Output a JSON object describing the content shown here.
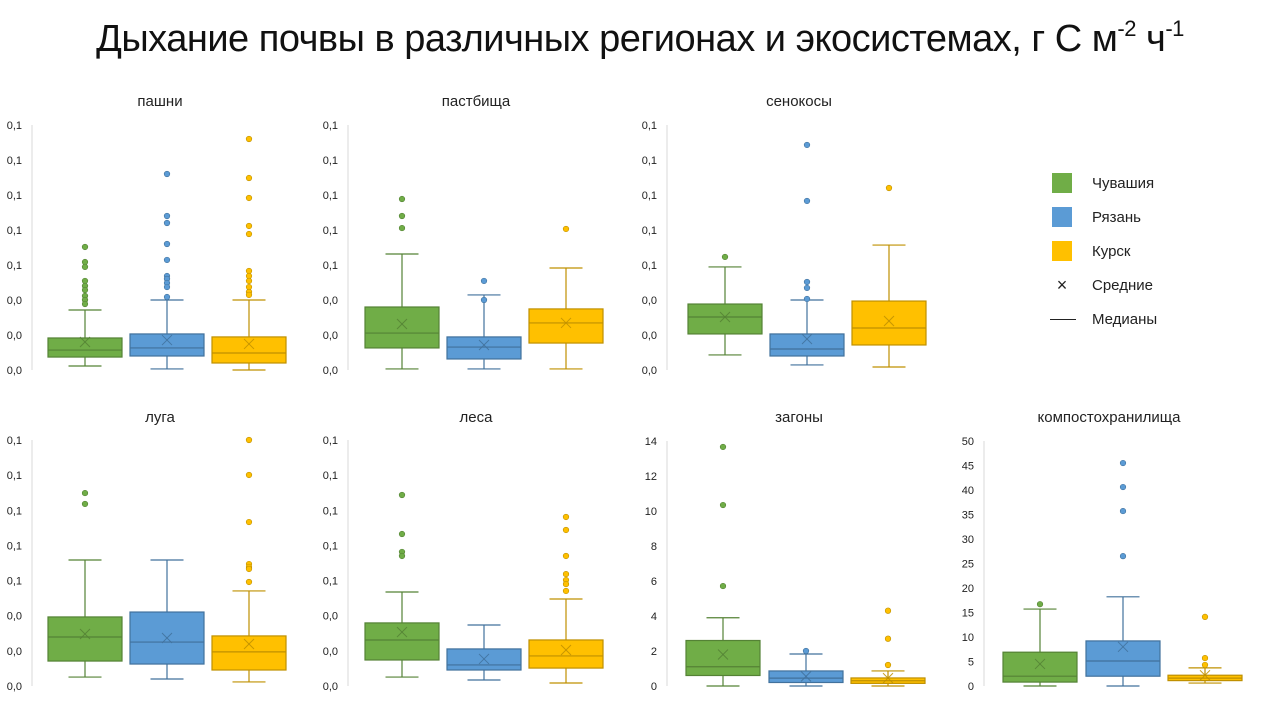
{
  "title": {
    "text": "Дыхание почвы в различных регионах и экосистемах, г С м",
    "sup1": "-2",
    "mid": " ч",
    "sup2": "-1"
  },
  "legend": {
    "items": [
      {
        "label": "Чувашия",
        "type": "swatch",
        "color": "#70ad47"
      },
      {
        "label": "Рязань",
        "type": "swatch",
        "color": "#5b9bd5"
      },
      {
        "label": "Курск",
        "type": "swatch",
        "color": "#ffc000"
      },
      {
        "label": "Средние",
        "type": "x-marker",
        "symbol": "×"
      },
      {
        "label": "Медианы",
        "type": "line"
      }
    ]
  },
  "colors": {
    "Чувашия": {
      "fill": "#70ad47",
      "line": "#548235"
    },
    "Рязань": {
      "fill": "#5b9bd5",
      "line": "#41719c"
    },
    "Курск": {
      "fill": "#ffc000",
      "line": "#bf9000"
    },
    "axis": "#d9d9d9",
    "text": "#222222"
  },
  "chart_data": [
    {
      "type": "boxplot",
      "title": "пашни",
      "ylim": [
        0,
        0.14
      ],
      "yticks": [
        0,
        0.02,
        0.04,
        0.06,
        0.08,
        0.1,
        0.12,
        0.14
      ],
      "ytick_labels": [
        "0,0",
        "0,0",
        "0,0",
        "0,1",
        "0,1",
        "0,1",
        "0,1",
        "0,1"
      ],
      "series": [
        {
          "name": "Чувашия",
          "whisker_low": 0.0023,
          "q1": 0.0074,
          "median": 0.0114,
          "mean": 0.016,
          "q3": 0.0183,
          "whisker_high": 0.0343,
          "outliers": [
            0.0703,
            0.0617,
            0.0589,
            0.0509,
            0.048,
            0.0457,
            0.0423,
            0.04,
            0.0377
          ]
        },
        {
          "name": "Рязань",
          "whisker_low": 0.0006,
          "q1": 0.008,
          "median": 0.0126,
          "mean": 0.0171,
          "q3": 0.0206,
          "whisker_high": 0.04,
          "outliers": [
            0.112,
            0.088,
            0.084,
            0.072,
            0.0629,
            0.0537,
            0.052,
            0.0497,
            0.0474,
            0.0417
          ]
        },
        {
          "name": "Курск",
          "whisker_low": 0.0,
          "q1": 0.004,
          "median": 0.0097,
          "mean": 0.0149,
          "q3": 0.0189,
          "whisker_high": 0.04,
          "outliers": [
            0.132,
            0.1097,
            0.0983,
            0.0823,
            0.0777,
            0.0566,
            0.0537,
            0.0509,
            0.0474,
            0.0446,
            0.0429
          ]
        }
      ]
    },
    {
      "type": "boxplot",
      "title": "пастбища",
      "ylim": [
        0,
        0.14
      ],
      "yticks": [
        0,
        0.02,
        0.04,
        0.06,
        0.08,
        0.1,
        0.12,
        0.14
      ],
      "ytick_labels": [
        "0,0",
        "0,0",
        "0,0",
        "0,1",
        "0,1",
        "0,1",
        "0,1",
        "0,1"
      ],
      "series": [
        {
          "name": "Чувашия",
          "whisker_low": 0.0006,
          "q1": 0.0126,
          "median": 0.0211,
          "mean": 0.0263,
          "q3": 0.036,
          "whisker_high": 0.0663,
          "outliers": [
            0.0977,
            0.088,
            0.0811
          ]
        },
        {
          "name": "Рязань",
          "whisker_low": 0.0006,
          "q1": 0.0063,
          "median": 0.0131,
          "mean": 0.0143,
          "q3": 0.0189,
          "whisker_high": 0.0429,
          "outliers": [
            0.0509,
            0.04
          ]
        },
        {
          "name": "Курск",
          "whisker_low": 0.0006,
          "q1": 0.0154,
          "median": 0.0269,
          "mean": 0.0269,
          "q3": 0.0349,
          "whisker_high": 0.0583,
          "outliers": [
            0.0806
          ]
        }
      ]
    },
    {
      "type": "boxplot",
      "title": "сенокосы",
      "ylim": [
        0,
        0.14
      ],
      "yticks": [
        0,
        0.02,
        0.04,
        0.06,
        0.08,
        0.1,
        0.12,
        0.14
      ],
      "ytick_labels": [
        "0,0",
        "0,0",
        "0,0",
        "0,1",
        "0,1",
        "0,1",
        "0,1",
        "0,1"
      ],
      "series": [
        {
          "name": "Чувашия",
          "whisker_low": 0.0086,
          "q1": 0.0206,
          "median": 0.0303,
          "mean": 0.0303,
          "q3": 0.0377,
          "whisker_high": 0.0589,
          "outliers": [
            0.0646
          ]
        },
        {
          "name": "Рязань",
          "whisker_low": 0.0029,
          "q1": 0.008,
          "median": 0.012,
          "mean": 0.0177,
          "q3": 0.0206,
          "whisker_high": 0.04,
          "outliers": [
            0.1286,
            0.0966,
            0.0503,
            0.0469,
            0.0406
          ]
        },
        {
          "name": "Курск",
          "whisker_low": 0.0017,
          "q1": 0.0143,
          "median": 0.024,
          "mean": 0.028,
          "q3": 0.0394,
          "whisker_high": 0.0714,
          "outliers": [
            0.104
          ]
        }
      ]
    },
    {
      "type": "boxplot",
      "title": "луга",
      "ylim": [
        0,
        0.14
      ],
      "yticks": [
        0,
        0.02,
        0.04,
        0.06,
        0.08,
        0.1,
        0.12,
        0.14
      ],
      "ytick_labels": [
        "0,0",
        "0,0",
        "0,0",
        "0,1",
        "0,1",
        "0,1",
        "0,1",
        "0,1"
      ],
      "series": [
        {
          "name": "Чувашия",
          "whisker_low": 0.0051,
          "q1": 0.0142,
          "median": 0.0279,
          "mean": 0.0296,
          "q3": 0.0393,
          "whisker_high": 0.0717,
          "outliers": [
            0.1098,
            0.1036
          ]
        },
        {
          "name": "Рязань",
          "whisker_low": 0.004,
          "q1": 0.0125,
          "median": 0.025,
          "mean": 0.0273,
          "q3": 0.0421,
          "whisker_high": 0.0717,
          "outliers": []
        },
        {
          "name": "Курск",
          "whisker_low": 0.0023,
          "q1": 0.0091,
          "median": 0.0194,
          "mean": 0.0239,
          "q3": 0.0285,
          "whisker_high": 0.0541,
          "outliers": [
            0.14,
            0.1201,
            0.0933,
            0.0694,
            0.0677,
            0.0666,
            0.0592
          ]
        }
      ]
    },
    {
      "type": "boxplot",
      "title": "леса",
      "ylim": [
        0,
        0.14
      ],
      "yticks": [
        0,
        0.02,
        0.04,
        0.06,
        0.08,
        0.1,
        0.12,
        0.14
      ],
      "ytick_labels": [
        "0,0",
        "0,0",
        "0,0",
        "0,1",
        "0,1",
        "0,1",
        "0,1",
        "0,1"
      ],
      "series": [
        {
          "name": "Чувашия",
          "whisker_low": 0.0051,
          "q1": 0.0148,
          "median": 0.0262,
          "mean": 0.0307,
          "q3": 0.0359,
          "whisker_high": 0.0535,
          "outliers": [
            0.1087,
            0.0865,
            0.0763,
            0.074
          ]
        },
        {
          "name": "Рязань",
          "whisker_low": 0.0034,
          "q1": 0.0091,
          "median": 0.012,
          "mean": 0.0154,
          "q3": 0.0211,
          "whisker_high": 0.0347,
          "outliers": []
        },
        {
          "name": "Курск",
          "whisker_low": 0.0017,
          "q1": 0.0102,
          "median": 0.0171,
          "mean": 0.0205,
          "q3": 0.0262,
          "whisker_high": 0.0495,
          "outliers": [
            0.0962,
            0.0888,
            0.074,
            0.0637,
            0.0603,
            0.058,
            0.0541
          ]
        }
      ]
    },
    {
      "type": "boxplot",
      "title": "загоны",
      "ylim": [
        0,
        14
      ],
      "yticks": [
        0,
        2,
        4,
        6,
        8,
        10,
        12,
        14
      ],
      "ytick_labels": [
        "0",
        "2",
        "4",
        "6",
        "8",
        "10",
        "12",
        "14"
      ],
      "series": [
        {
          "name": "Чувашия",
          "whisker_low": 0.0,
          "q1": 0.6,
          "median": 1.1,
          "mean": 1.8,
          "q3": 2.6,
          "whisker_high": 3.9,
          "outliers": [
            13.66,
            10.34,
            5.71
          ]
        },
        {
          "name": "Рязань",
          "whisker_low": 0.0,
          "q1": 0.2,
          "median": 0.45,
          "mean": 0.55,
          "q3": 0.86,
          "whisker_high": 1.83,
          "outliers": [
            2.0
          ]
        },
        {
          "name": "Курск",
          "whisker_low": 0.0,
          "q1": 0.15,
          "median": 0.3,
          "mean": 0.45,
          "q3": 0.46,
          "whisker_high": 0.86,
          "outliers": [
            4.3,
            2.7,
            1.2
          ]
        }
      ]
    },
    {
      "type": "boxplot",
      "title": "компостохранилища",
      "ylim": [
        0,
        50
      ],
      "yticks": [
        0,
        5,
        10,
        15,
        20,
        25,
        30,
        35,
        40,
        45,
        50
      ],
      "ytick_labels": [
        "0",
        "5",
        "10",
        "15",
        "20",
        "25",
        "30",
        "35",
        "40",
        "45",
        "50"
      ],
      "series": [
        {
          "name": "Чувашия",
          "whisker_low": 0.0,
          "q1": 0.8,
          "median": 2.0,
          "mean": 4.5,
          "q3": 6.9,
          "whisker_high": 15.7,
          "outliers": [
            16.7
          ]
        },
        {
          "name": "Рязань",
          "whisker_low": 0.0,
          "q1": 2.0,
          "median": 5.1,
          "mean": 8.0,
          "q3": 9.2,
          "whisker_high": 18.2,
          "outliers": [
            45.5,
            40.6,
            35.7,
            26.5
          ]
        },
        {
          "name": "Курск",
          "whisker_low": 0.6,
          "q1": 1.1,
          "median": 1.6,
          "mean": 2.2,
          "q3": 2.2,
          "whisker_high": 3.7,
          "outliers": [
            14.1,
            5.7,
            4.3
          ]
        }
      ]
    }
  ]
}
